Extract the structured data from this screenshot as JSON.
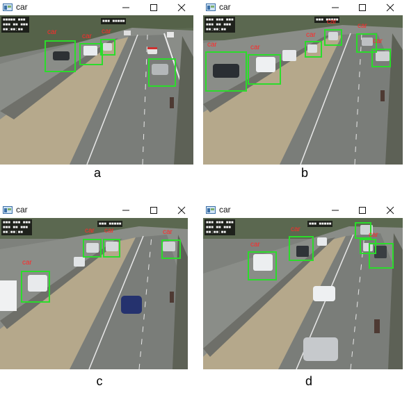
{
  "window_title": "car",
  "detection_label": "car",
  "captions": [
    "a",
    "b",
    "c",
    "d"
  ],
  "colors": {
    "box": "#2bdc2b",
    "label": "#ff2a2a"
  },
  "icons": {
    "app": "opencv-window-icon",
    "minimize": "minimize-icon",
    "maximize": "maximize-icon",
    "close": "close-icon"
  }
}
